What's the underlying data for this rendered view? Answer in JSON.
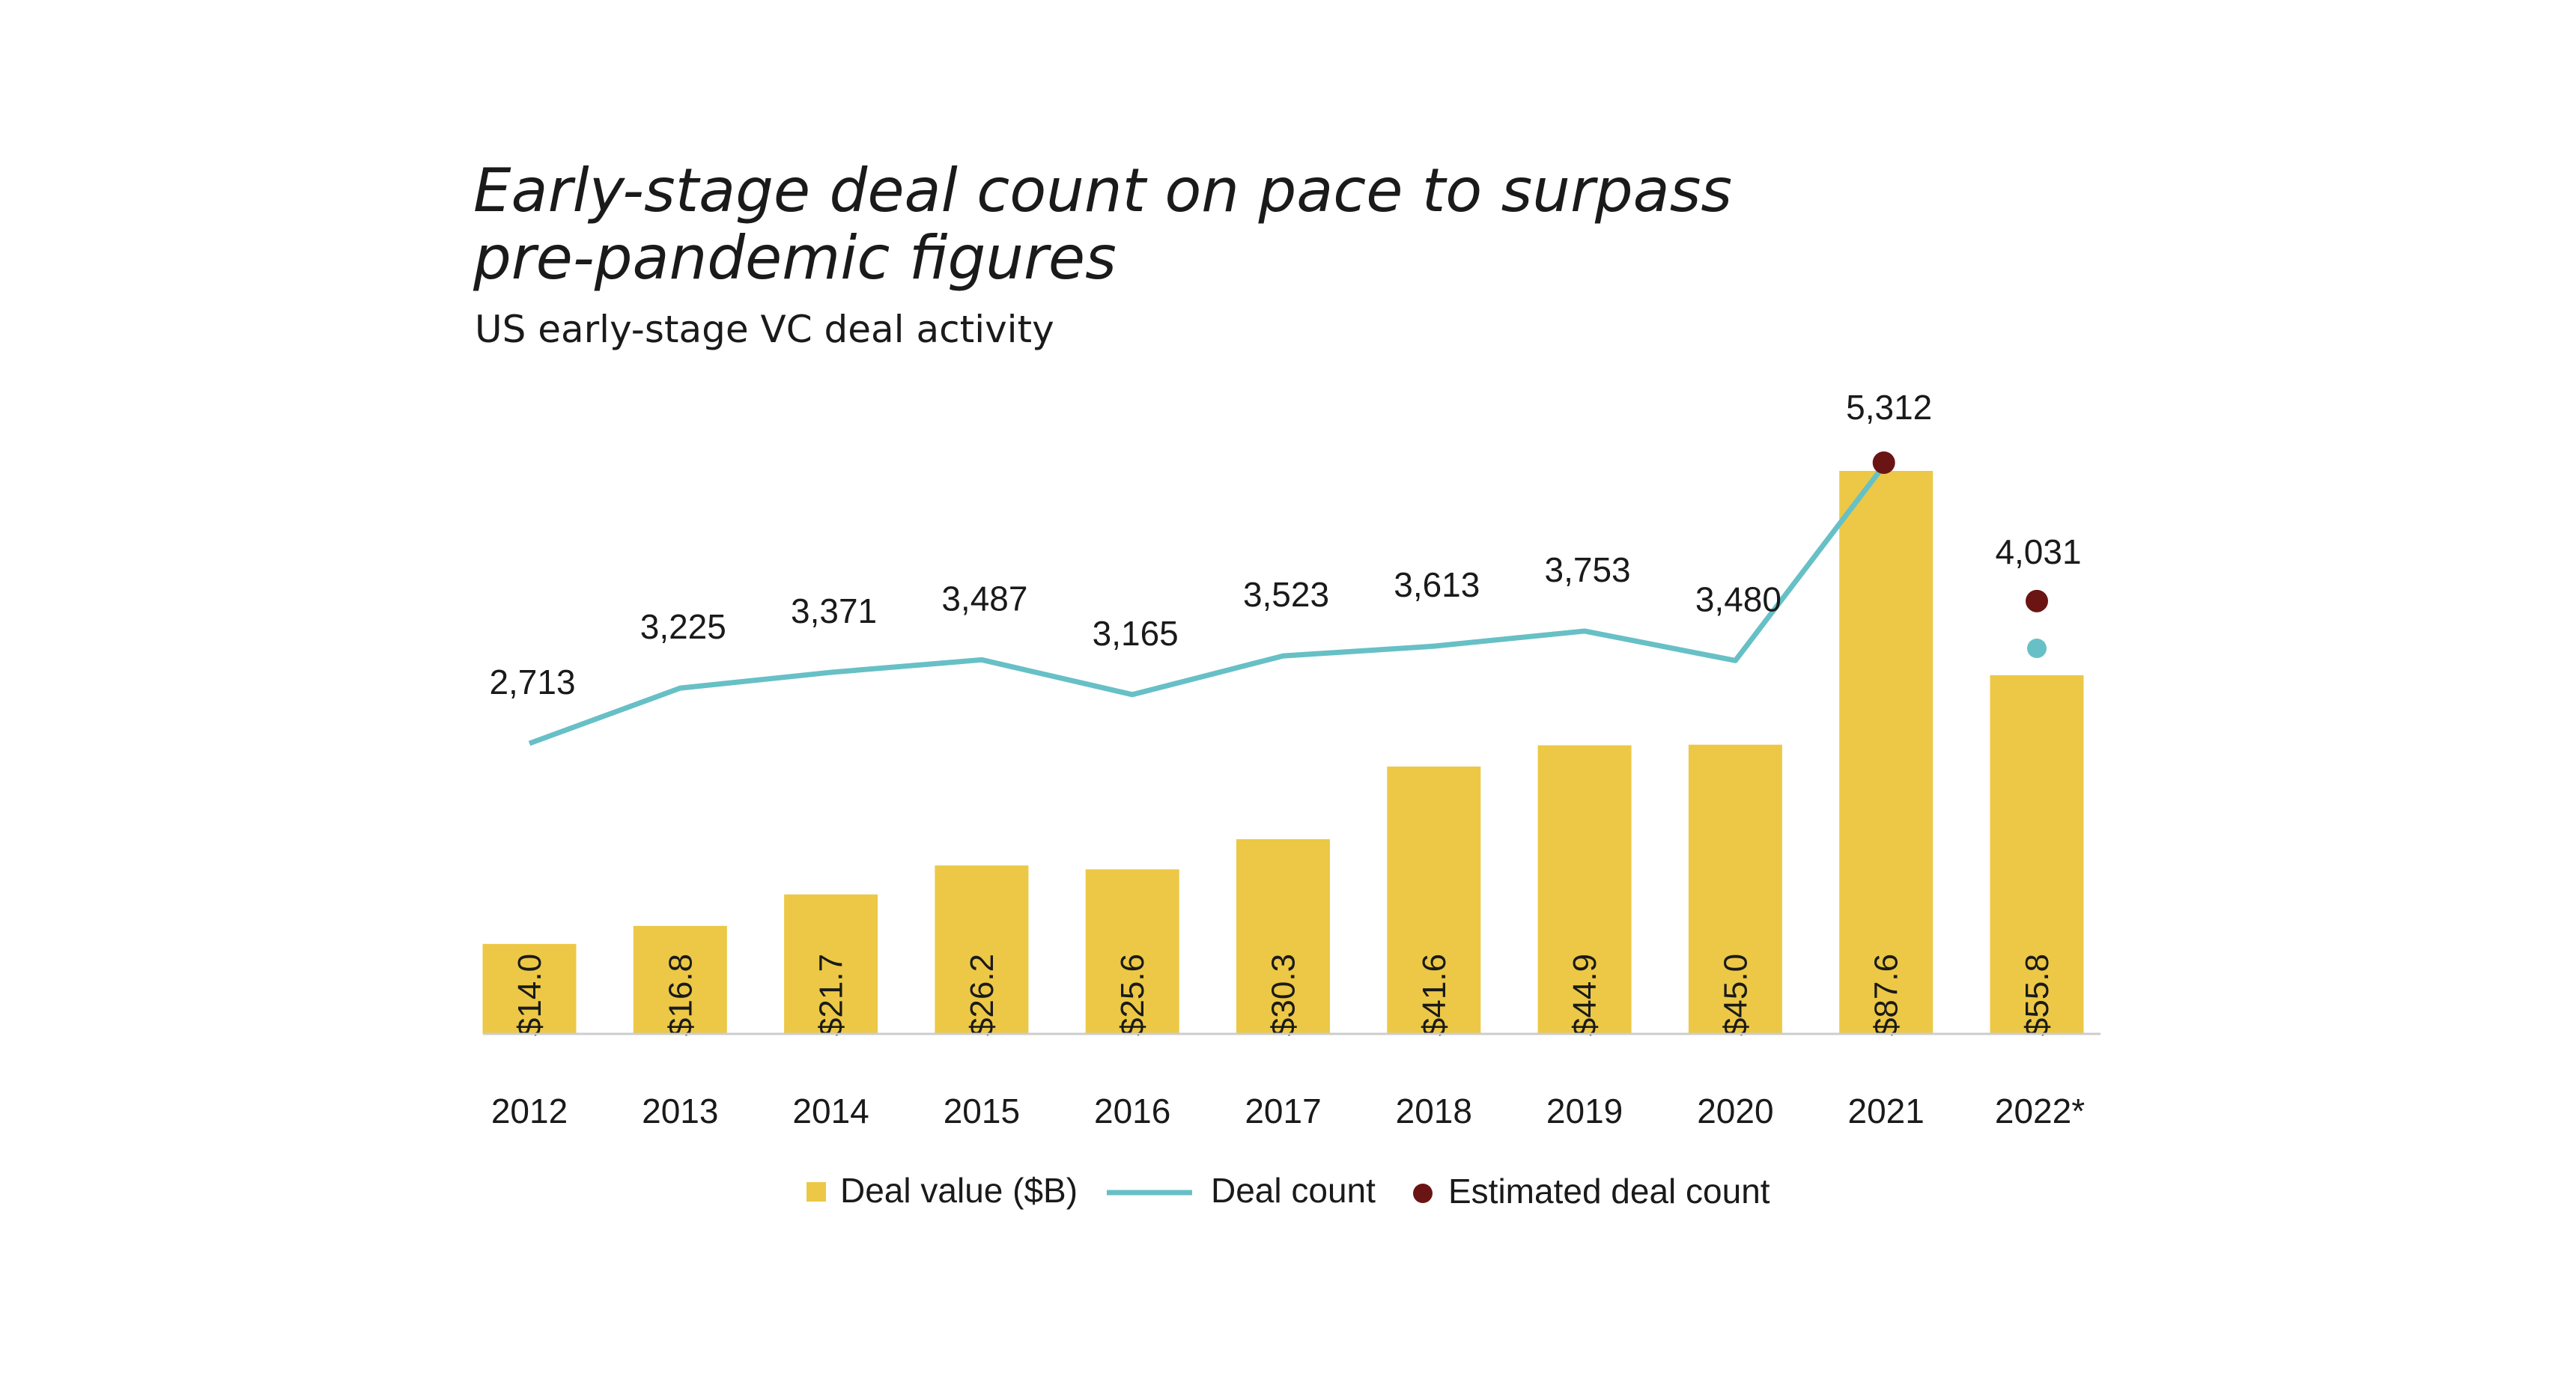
{
  "title": "Early-stage deal count on pace to surpass\npre-pandemic figures",
  "subtitle": "US early-stage VC deal activity",
  "colors": {
    "bar": "#ecc846",
    "line": "#67c0c6",
    "estimate": "#6b1414",
    "axis": "#cccccc"
  },
  "chart_data": {
    "type": "bar",
    "categories": [
      "2012",
      "2013",
      "2014",
      "2015",
      "2016",
      "2017",
      "2018",
      "2019",
      "2020",
      "2021",
      "2022*"
    ],
    "series": [
      {
        "name": "Deal value ($B)",
        "type": "bar",
        "values": [
          14.0,
          16.8,
          21.7,
          26.2,
          25.6,
          30.3,
          41.6,
          44.9,
          45.0,
          87.6,
          55.8
        ],
        "labels": [
          "$14.0",
          "$16.8",
          "$21.7",
          "$26.2",
          "$25.6",
          "$30.3",
          "$41.6",
          "$44.9",
          "$45.0",
          "$87.6",
          "$55.8"
        ]
      },
      {
        "name": "Deal count",
        "type": "line",
        "values": [
          2713,
          3225,
          3371,
          3487,
          3165,
          3523,
          3613,
          3753,
          3480,
          5312,
          null
        ],
        "labels": [
          "2,713",
          "3,225",
          "3,371",
          "3,487",
          "3,165",
          "3,523",
          "3,613",
          "3,753",
          "3,480",
          "5,312",
          null
        ],
        "partial_point": {
          "category": "2022*"
        }
      },
      {
        "name": "Estimated deal count",
        "type": "scatter",
        "values": [
          null,
          null,
          null,
          null,
          null,
          null,
          null,
          null,
          null,
          5312,
          4031
        ],
        "labels": [
          null,
          null,
          null,
          null,
          null,
          null,
          null,
          null,
          null,
          null,
          "4,031"
        ]
      }
    ],
    "legend": {
      "position": "bottom",
      "items": [
        "Deal value ($B)",
        "Deal count",
        "Estimated deal count"
      ]
    },
    "grid": false
  }
}
